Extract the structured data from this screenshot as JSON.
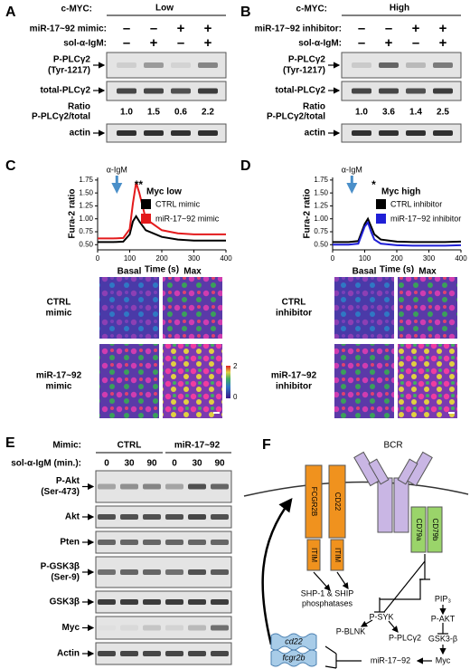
{
  "panel_a": {
    "label": "A",
    "cmyc_label": "c-MYC:",
    "cmyc_level": "Low",
    "treatments": [
      {
        "label": "miR-17~92 mimic:",
        "signs": [
          "–",
          "–",
          "+",
          "+"
        ]
      },
      {
        "label": "sol-α-IgM:",
        "signs": [
          "–",
          "+",
          "–",
          "+"
        ]
      }
    ],
    "blots": {
      "phospho": [
        "P-PLCγ2",
        "(Tyr-1217)"
      ],
      "total": "total-PLCγ2",
      "actin": "actin"
    },
    "ratio": {
      "label": [
        "Ratio",
        "P-PLCγ2/total"
      ],
      "values": [
        "1.0",
        "1.5",
        "0.6",
        "2.2"
      ]
    }
  },
  "panel_b": {
    "label": "B",
    "cmyc_label": "c-MYC:",
    "cmyc_level": "High",
    "treatments": [
      {
        "label": "miR-17~92 inhibitor:",
        "signs": [
          "–",
          "–",
          "+",
          "+"
        ]
      },
      {
        "label": "sol-α-IgM:",
        "signs": [
          "–",
          "+",
          "–",
          "+"
        ]
      }
    ],
    "blots": {
      "phospho": [
        "P-PLCγ2",
        "(Tyr-1217)"
      ],
      "total": "total-PLCγ2",
      "actin": "actin"
    },
    "ratio": {
      "label": [
        "Ratio",
        "P-PLCγ2/total"
      ],
      "values": [
        "1.0",
        "3.6",
        "1.4",
        "2.5"
      ]
    }
  },
  "panel_c": {
    "label": "C",
    "type": "line",
    "ylabel": "Fura-2 ratio",
    "xlabel": "Time (s)",
    "annotation": "α-IgM",
    "significance": "**",
    "legend_title": "Myc low",
    "x": [
      0,
      50,
      80,
      100,
      110,
      120,
      130,
      150,
      200,
      250,
      300,
      350,
      400
    ],
    "series": [
      {
        "name": "CTRL mimic",
        "color": "#000000",
        "values": [
          0.55,
          0.55,
          0.56,
          0.7,
          0.95,
          1.05,
          0.95,
          0.78,
          0.65,
          0.6,
          0.58,
          0.58,
          0.58
        ]
      },
      {
        "name": "miR-17~92 mimic",
        "color": "#e31a1c",
        "values": [
          0.62,
          0.62,
          0.63,
          0.8,
          1.3,
          1.7,
          1.5,
          1.0,
          0.78,
          0.72,
          0.7,
          0.7,
          0.7
        ]
      }
    ],
    "xlim": [
      0,
      400
    ],
    "xticks": [
      0,
      100,
      200,
      300,
      400
    ],
    "ylim": [
      0.4,
      1.8
    ],
    "yticks": [
      {
        "value": 0.5,
        "label": "0.50"
      },
      {
        "value": 0.75,
        "label": "0.75"
      },
      {
        "value": 1,
        "label": "1.00"
      },
      {
        "value": 1.25,
        "label": "1.25"
      },
      {
        "value": 1.5,
        "label": "1.50"
      },
      {
        "value": 1.75,
        "label": "1.75"
      }
    ],
    "images": {
      "columns": [
        "Basal",
        "Max"
      ],
      "rows": [
        [
          "CTRL",
          "mimic"
        ],
        [
          "miR-17~92",
          "mimic"
        ]
      ],
      "colorbar": [
        2,
        0
      ]
    }
  },
  "panel_d": {
    "label": "D",
    "type": "line",
    "ylabel": "Fura-2 ratio",
    "xlabel": "Time (s)",
    "annotation": "α-IgM",
    "significance": "*",
    "legend_title": "Myc high",
    "x": [
      0,
      50,
      80,
      100,
      110,
      120,
      130,
      150,
      200,
      250,
      300,
      350,
      400
    ],
    "series": [
      {
        "name": "CTRL inhibitor",
        "color": "#000000",
        "values": [
          0.55,
          0.55,
          0.57,
          0.9,
          1.0,
          0.85,
          0.7,
          0.6,
          0.56,
          0.55,
          0.55,
          0.55,
          0.56
        ]
      },
      {
        "name": "miR-17~92 inhibitor",
        "color": "#1f1fd6",
        "values": [
          0.5,
          0.5,
          0.52,
          0.85,
          0.93,
          0.75,
          0.6,
          0.52,
          0.49,
          0.48,
          0.48,
          0.48,
          0.49
        ]
      }
    ],
    "xlim": [
      0,
      400
    ],
    "xticks": [
      0,
      100,
      200,
      300,
      400
    ],
    "ylim": [
      0.4,
      1.8
    ],
    "yticks": [
      {
        "value": 0.5,
        "label": "0.50"
      },
      {
        "value": 0.75,
        "label": "0.75"
      },
      {
        "value": 1,
        "label": "1.00"
      },
      {
        "value": 1.25,
        "label": "1.25"
      },
      {
        "value": 1.5,
        "label": "1.50"
      },
      {
        "value": 1.75,
        "label": "1.75"
      }
    ],
    "images": {
      "columns": [
        "Basal",
        "Max"
      ],
      "rows": [
        [
          "CTRL",
          "inhibitor"
        ],
        [
          "miR-17~92",
          "inhibitor"
        ]
      ]
    }
  },
  "panel_e": {
    "label": "E",
    "mimic_label": "Mimic:",
    "groups": [
      "CTRL",
      "miR-17~92"
    ],
    "time_label": "sol-α-IgM (min.):",
    "times": [
      0,
      30,
      90,
      0,
      30,
      90
    ],
    "blots": [
      [
        "P-Akt",
        "(Ser-473)"
      ],
      [
        "Akt"
      ],
      [
        "Pten"
      ],
      [
        "P-GSK3β",
        "(Ser-9)"
      ],
      [
        "GSK3β"
      ],
      [
        "Myc"
      ],
      [
        "Actin"
      ]
    ]
  },
  "panel_f": {
    "label": "F",
    "bcr": "BCR",
    "fcgr2b": "FCGR2B",
    "cd22": "CD22",
    "itim": [
      "ITIM",
      "ITIM"
    ],
    "cd79a": "CD79a",
    "cd79b": "CD79b",
    "phosphatases": [
      "SHP-1 & SHIP",
      "phosphatases"
    ],
    "psyk": "P-SYK",
    "pip3": "PIP₃",
    "pakt": "P-AKT",
    "pblnk": "P-BLNK",
    "pplcg2": "P-PLCγ2",
    "gsk3b": "GSK3-β",
    "myc": "Myc",
    "mir": "miR-17~92",
    "cd22_gene": "cd22",
    "fcgr2b_gene": "fcgr2b"
  }
}
